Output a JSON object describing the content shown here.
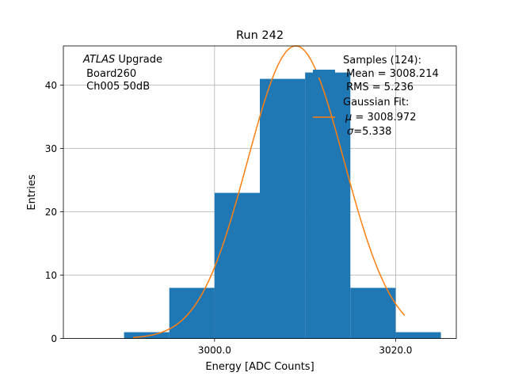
{
  "chart_data": {
    "type": "bar",
    "title": "Run 242",
    "xlabel": "Energy [ADC Counts]",
    "ylabel": "Entries",
    "xlim": [
      2983.3,
      3026.7
    ],
    "ylim": [
      0,
      46.2
    ],
    "grid": true,
    "x_ticks": [
      {
        "value": 3000,
        "label": "3000.0"
      },
      {
        "value": 3020,
        "label": "3020.0"
      }
    ],
    "y_ticks": [
      {
        "value": 0,
        "label": "0"
      },
      {
        "value": 10,
        "label": "10"
      },
      {
        "value": 20,
        "label": "20"
      },
      {
        "value": 30,
        "label": "30"
      },
      {
        "value": 40,
        "label": "40"
      }
    ],
    "histogram": {
      "name": "Samples (124):",
      "color": "#1f77b4",
      "bins": [
        {
          "x0": 2990,
          "x1": 2995,
          "count": 1
        },
        {
          "x0": 2995,
          "x1": 3000,
          "count": 8
        },
        {
          "x0": 3000,
          "x1": 3005,
          "count": 23
        },
        {
          "x0": 3005,
          "x1": 3010,
          "count": 41
        },
        {
          "x0": 3010,
          "x1": 3015,
          "count": 42
        },
        {
          "x0": 3015,
          "x1": 3020,
          "count": 8
        },
        {
          "x0": 3020,
          "x1": 3025,
          "count": 1
        }
      ]
    },
    "fit": {
      "name": "Gaussian Fit:",
      "color": "#ff7f0e",
      "mu": 3008.972,
      "sigma": 5.338,
      "amplitude": 46.2,
      "x_range": [
        2991,
        3021
      ]
    },
    "annotation": {
      "line1_italic": "ATLAS",
      "line1_rest": " Upgrade",
      "line2": " Board260",
      "line3": " Ch005 50dB"
    },
    "legend": {
      "placement": "top-right",
      "samples_title": "Samples (124):",
      "samples_mean": " Mean = 3008.214",
      "samples_rms": " RMS = 5.236",
      "fit_title": "Gaussian Fit:",
      "fit_mu_symbol": "μ",
      "fit_mu_value": " = 3008.972",
      "fit_sigma_symbol": "σ",
      "fit_sigma_value": "=5.338"
    }
  }
}
